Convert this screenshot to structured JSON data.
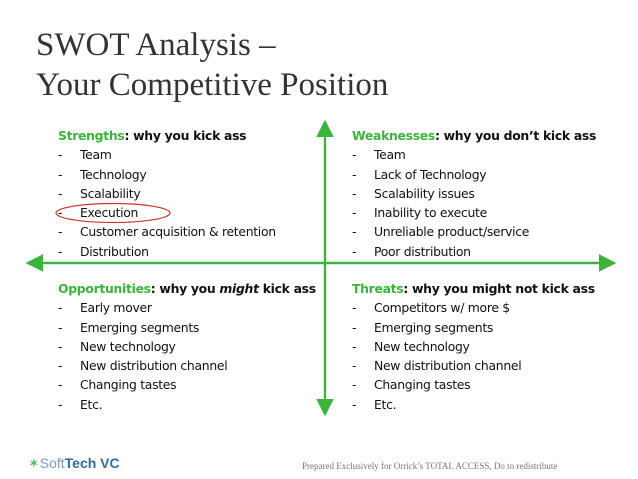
{
  "title": {
    "line1": "SWOT Analysis –",
    "line2": "Your Competitive Position"
  },
  "colors": {
    "accent": "#3cb43c",
    "circle": "#d03030"
  },
  "quadrants": [
    {
      "label": "Strengths",
      "rest": ": why you kick ass",
      "italic": "",
      "tail": "",
      "items": [
        "Team",
        "Technology",
        "Scalability",
        "Execution",
        "Customer acquisition & retention",
        "Distribution"
      ],
      "circled_item": "Execution"
    },
    {
      "label": "Weaknesses",
      "rest": ": why you don’t kick ass",
      "italic": "",
      "tail": "",
      "items": [
        "Team",
        "Lack of Technology",
        "Scalability issues",
        "Inability to execute",
        "Unreliable product/service",
        "Poor distribution"
      ]
    },
    {
      "label": "Opportunities",
      "rest": ": why you ",
      "italic": "might",
      "tail": " kick ass",
      "items": [
        "Early mover",
        "Emerging segments",
        "New technology",
        "New distribution channel",
        "Changing tastes",
        "Etc."
      ]
    },
    {
      "label": "Threats",
      "rest": ": why you might not kick ass",
      "italic": "",
      "tail": "",
      "items": [
        "Competitors w/ more $",
        "Emerging segments",
        "New technology",
        "New distribution channel",
        "Changing tastes",
        "Etc."
      ]
    }
  ],
  "footer": {
    "logo_soft": "Soft",
    "logo_tech": "Tech VC",
    "note": "Prepared Exclusively for Orrick’s TOTAL ACCESS,  Do to redistribute"
  }
}
